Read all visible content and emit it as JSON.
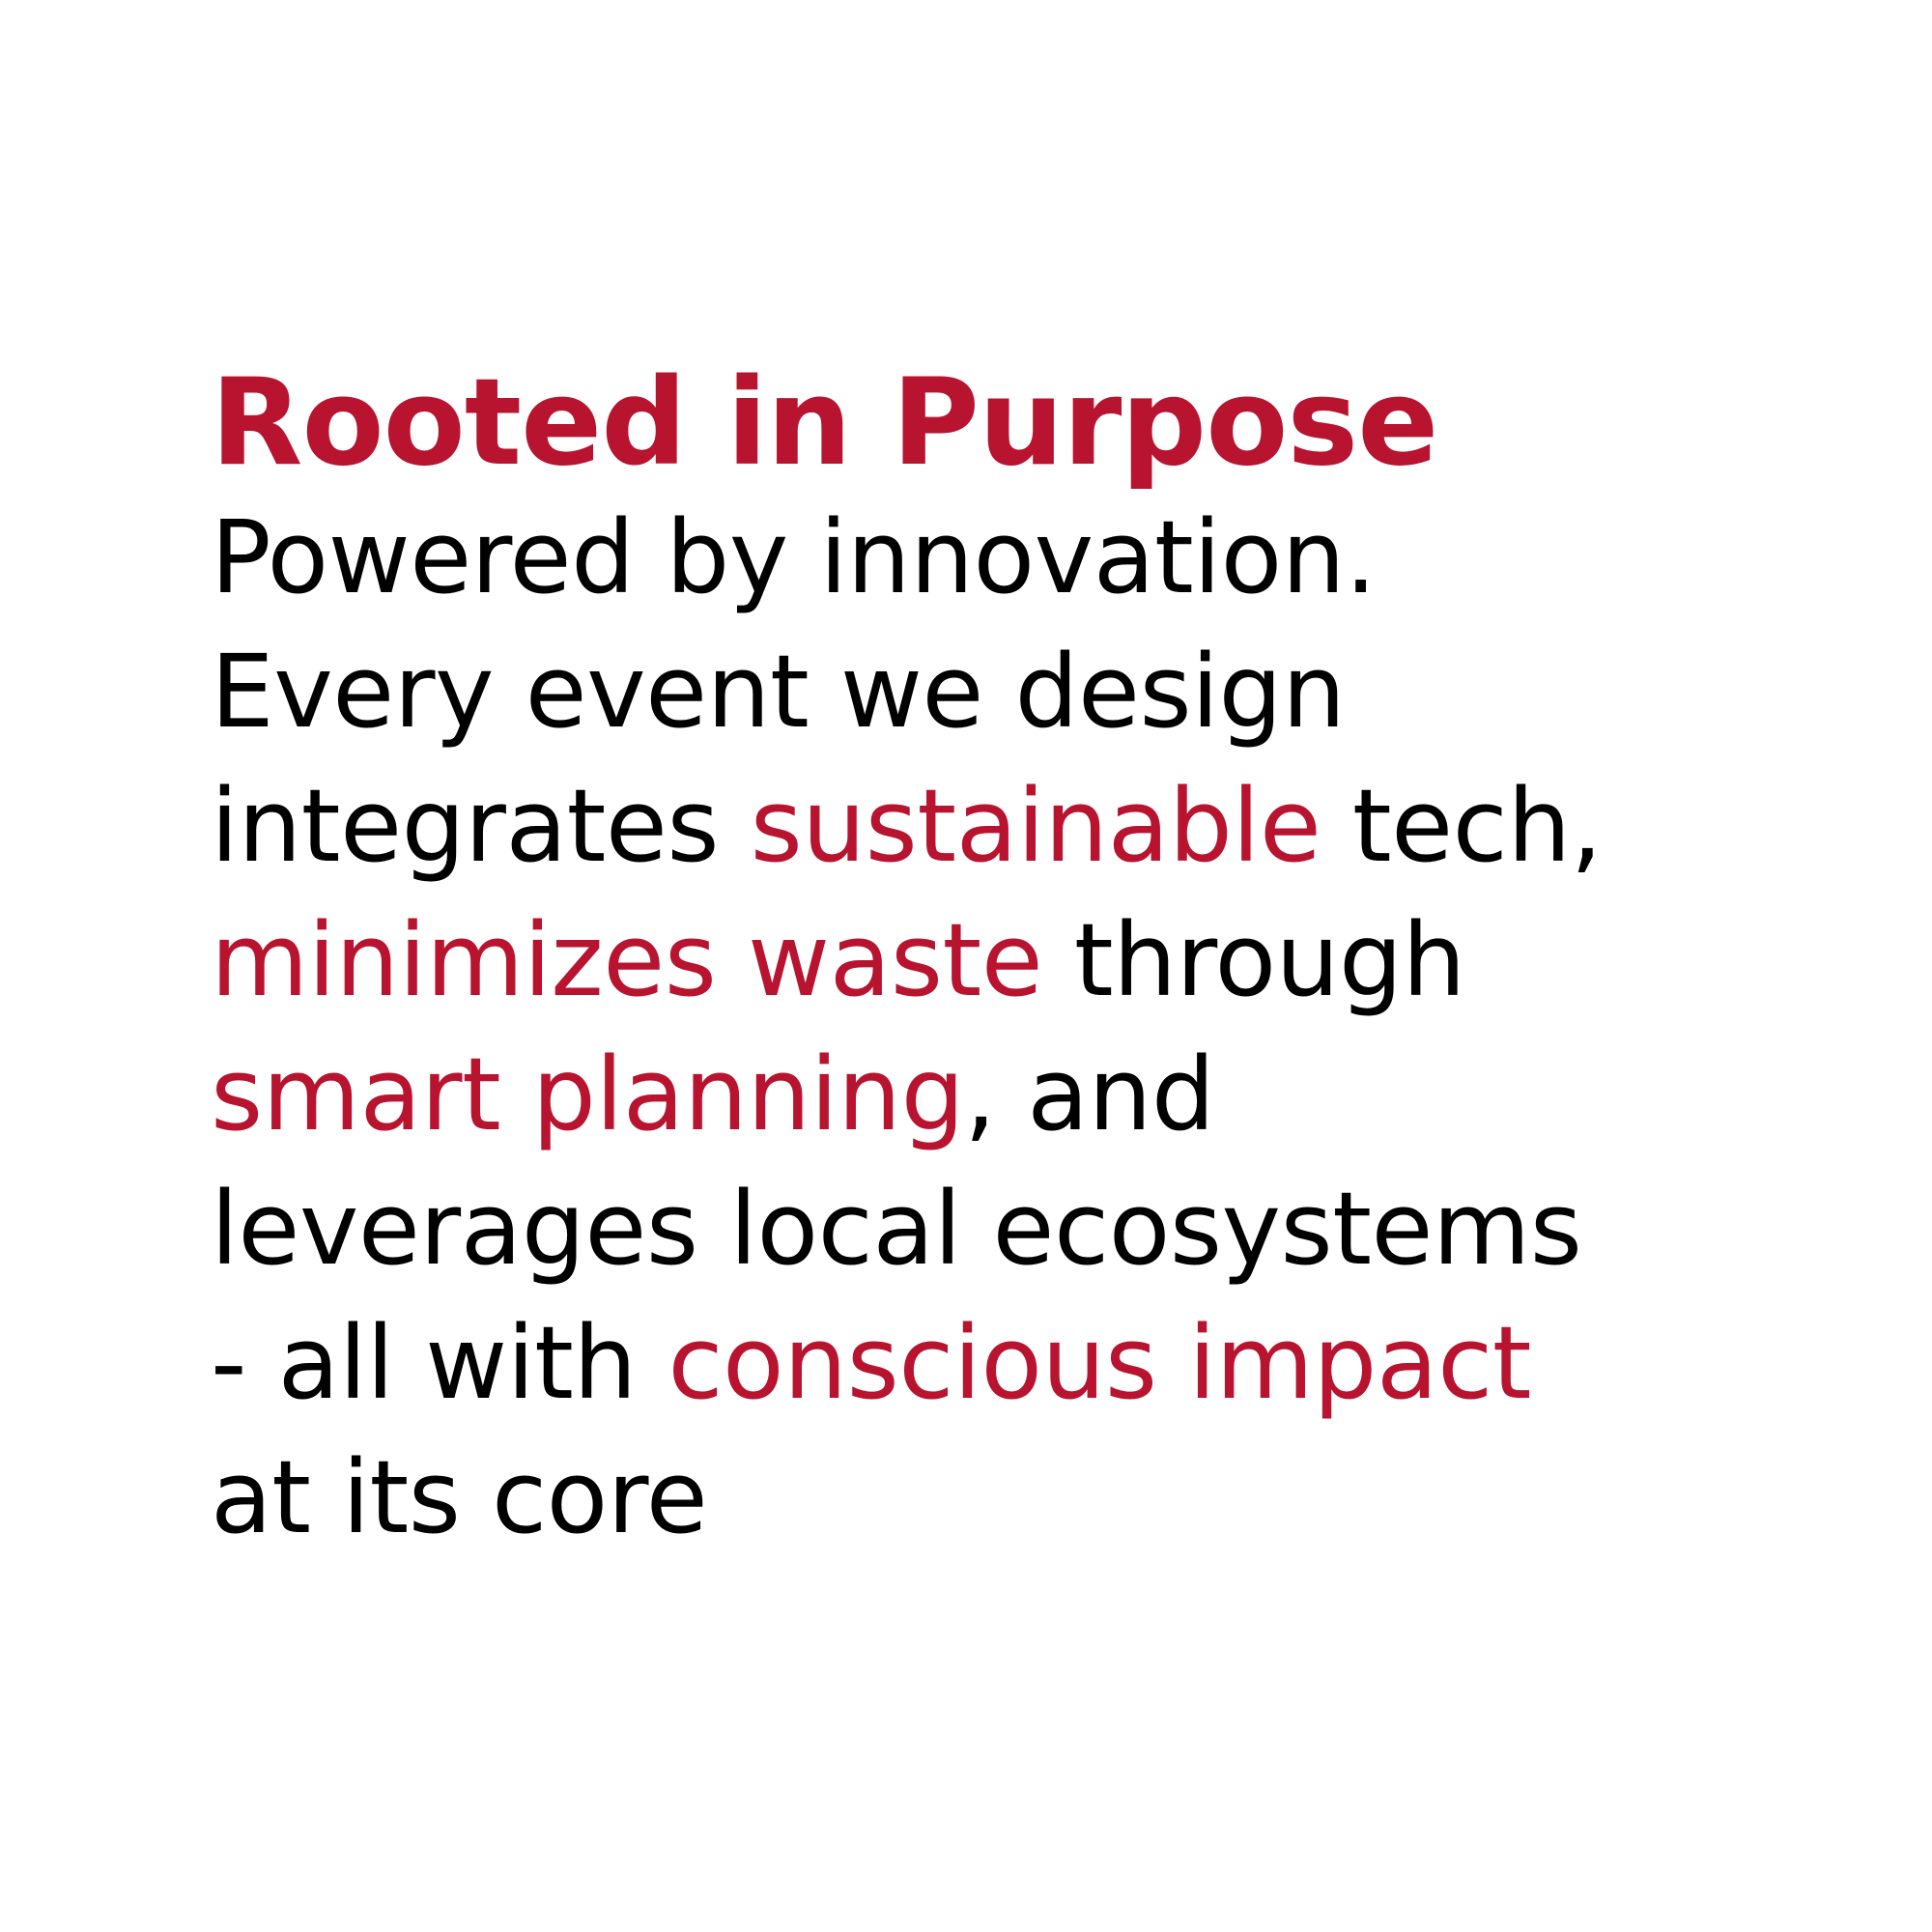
{
  "headline": "Rooted in Purpose",
  "accent_color": "#b8132f",
  "text_color": "#000000",
  "body_lines": [
    [
      {
        "text": "Powered by innovation.",
        "accent": false
      }
    ],
    [
      {
        "text": "Every event we design",
        "accent": false
      }
    ],
    [
      {
        "text": "integrates ",
        "accent": false
      },
      {
        "text": "sustainable",
        "accent": true
      },
      {
        "text": " tech,",
        "accent": false
      }
    ],
    [
      {
        "text": "minimizes waste",
        "accent": true
      },
      {
        "text": " through",
        "accent": false
      }
    ],
    [
      {
        "text": "smart planning",
        "accent": true
      },
      {
        "text": ", and",
        "accent": false
      }
    ],
    [
      {
        "text": "leverages local ecosystems",
        "accent": false
      }
    ],
    [
      {
        "text": "- all with ",
        "accent": false
      },
      {
        "text": "conscious impact",
        "accent": true
      }
    ],
    [
      {
        "text": "at its core",
        "accent": false
      }
    ]
  ]
}
